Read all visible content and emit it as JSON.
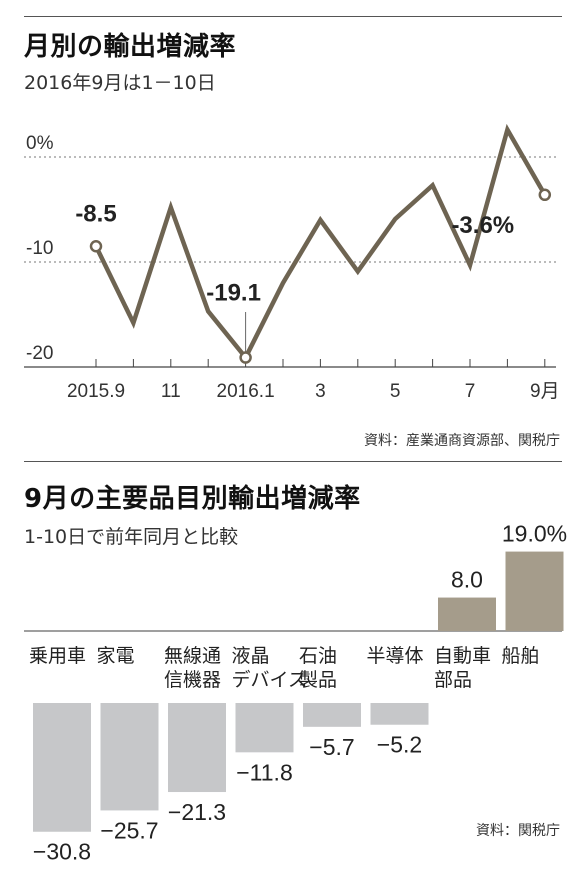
{
  "chart_data": [
    {
      "type": "line",
      "title": "月別の輸出増減率",
      "subtitle": "2016年9月は1－10日",
      "source": "資料：産業通商資源部、関税庁",
      "x": [
        "2015.9",
        "2015.10",
        "2015.11",
        "2015.12",
        "2016.1",
        "2016.2",
        "2016.3",
        "2016.4",
        "2016.5",
        "2016.6",
        "2016.7",
        "2016.8",
        "2016.9"
      ],
      "xticks": [
        "2015.9",
        "11",
        "2016.1",
        "3",
        "5",
        "7",
        "9月"
      ],
      "yticks": [
        "0%",
        "-10",
        "-20"
      ],
      "ylim": [
        -22,
        2
      ],
      "series": [
        {
          "values": [
            -8.5,
            -15.8,
            -4.8,
            -14.7,
            -19.1,
            -12.0,
            -6.0,
            -10.9,
            -5.9,
            -2.7,
            -10.3,
            2.6,
            -3.6
          ]
        }
      ],
      "annotations": [
        {
          "index": 0,
          "text": "-8.5"
        },
        {
          "index": 4,
          "text": "-19.1"
        },
        {
          "index": 12,
          "text": "-3.6%"
        }
      ],
      "color": "#6e6452"
    },
    {
      "type": "bar",
      "title": "9月の主要品目別輸出増減率",
      "subtitle": "1-10日で前年同月と比較",
      "source": "資料：関税庁",
      "categories": [
        [
          "乗用車"
        ],
        [
          "家電"
        ],
        [
          "無線通",
          "信機器"
        ],
        [
          "液晶",
          "デバイス"
        ],
        [
          "石油",
          "製品"
        ],
        [
          "半導体"
        ],
        [
          "自動車",
          "部品"
        ],
        [
          "船舶"
        ]
      ],
      "values": [
        -30.8,
        -25.7,
        -21.3,
        -11.8,
        -5.7,
        -5.2,
        8.0,
        19.0
      ],
      "labels": [
        "−30.8",
        "−25.7",
        "−21.3",
        "−11.8",
        "−5.7",
        "−5.2",
        "8.0",
        "19.0%"
      ],
      "color_negative": "#c6c7c9",
      "color_positive": "#a59c8b"
    }
  ]
}
